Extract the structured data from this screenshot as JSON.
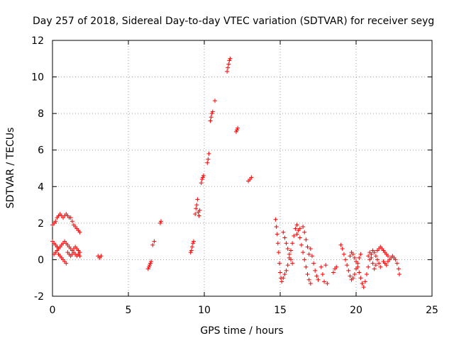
{
  "chart_data": {
    "type": "scatter",
    "title": "Day 257 of 2018, Sidereal Day-to-day VTEC variation (SDTVAR) for receiver seyg",
    "xlabel": "GPS time / hours",
    "ylabel": "SDTVAR / TECUs",
    "xlim": [
      0,
      25
    ],
    "ylim": [
      -2,
      12
    ],
    "xticks": [
      0,
      5,
      10,
      15,
      20,
      25
    ],
    "yticks": [
      -2,
      0,
      2,
      4,
      6,
      8,
      10,
      12
    ],
    "grid": true,
    "marker": "+",
    "color": "#ff0000",
    "series": [
      {
        "name": "SDTVAR",
        "points": [
          [
            0.0,
            1.9
          ],
          [
            0.1,
            2.0
          ],
          [
            0.2,
            2.1
          ],
          [
            0.3,
            2.3
          ],
          [
            0.4,
            2.4
          ],
          [
            0.5,
            2.5
          ],
          [
            0.6,
            2.4
          ],
          [
            0.7,
            2.3
          ],
          [
            0.8,
            2.4
          ],
          [
            0.9,
            2.5
          ],
          [
            1.0,
            2.4
          ],
          [
            1.1,
            2.3
          ],
          [
            1.2,
            2.3
          ],
          [
            1.3,
            2.1
          ],
          [
            1.4,
            1.9
          ],
          [
            1.5,
            1.8
          ],
          [
            1.6,
            1.7
          ],
          [
            1.7,
            1.6
          ],
          [
            1.8,
            1.5
          ],
          [
            0.0,
            1.0
          ],
          [
            0.1,
            0.9
          ],
          [
            0.2,
            0.8
          ],
          [
            0.3,
            0.7
          ],
          [
            0.4,
            0.6
          ],
          [
            0.5,
            0.7
          ],
          [
            0.6,
            0.8
          ],
          [
            0.7,
            0.9
          ],
          [
            0.8,
            1.0
          ],
          [
            0.9,
            0.9
          ],
          [
            1.0,
            0.8
          ],
          [
            1.1,
            0.7
          ],
          [
            1.2,
            0.6
          ],
          [
            1.3,
            0.5
          ],
          [
            1.4,
            0.6
          ],
          [
            1.5,
            0.7
          ],
          [
            1.6,
            0.6
          ],
          [
            1.7,
            0.5
          ],
          [
            1.8,
            0.4
          ],
          [
            0.1,
            0.3
          ],
          [
            0.2,
            0.4
          ],
          [
            0.3,
            0.5
          ],
          [
            0.4,
            0.3
          ],
          [
            0.5,
            0.2
          ],
          [
            0.6,
            0.1
          ],
          [
            0.7,
            0.0
          ],
          [
            0.8,
            -0.1
          ],
          [
            0.9,
            -0.2
          ],
          [
            1.0,
            0.4
          ],
          [
            1.1,
            0.3
          ],
          [
            1.2,
            0.2
          ],
          [
            1.3,
            0.3
          ],
          [
            1.4,
            0.4
          ],
          [
            1.5,
            0.3
          ],
          [
            1.6,
            0.2
          ],
          [
            1.7,
            0.3
          ],
          [
            1.8,
            0.2
          ],
          [
            3.0,
            0.2
          ],
          [
            3.1,
            0.1
          ],
          [
            3.2,
            0.2
          ],
          [
            6.3,
            -0.5
          ],
          [
            6.35,
            -0.4
          ],
          [
            6.4,
            -0.3
          ],
          [
            6.45,
            -0.2
          ],
          [
            6.5,
            -0.1
          ],
          [
            6.6,
            0.8
          ],
          [
            6.7,
            1.0
          ],
          [
            7.1,
            2.0
          ],
          [
            7.15,
            2.1
          ],
          [
            9.1,
            0.4
          ],
          [
            9.15,
            0.5
          ],
          [
            9.2,
            0.7
          ],
          [
            9.25,
            0.9
          ],
          [
            9.3,
            1.0
          ],
          [
            9.4,
            2.5
          ],
          [
            9.45,
            2.8
          ],
          [
            9.5,
            3.0
          ],
          [
            9.55,
            3.3
          ],
          [
            9.6,
            2.6
          ],
          [
            9.65,
            2.4
          ],
          [
            9.7,
            2.7
          ],
          [
            9.8,
            4.2
          ],
          [
            9.85,
            4.4
          ],
          [
            9.9,
            4.5
          ],
          [
            9.95,
            4.6
          ],
          [
            10.2,
            5.3
          ],
          [
            10.25,
            5.5
          ],
          [
            10.3,
            5.8
          ],
          [
            10.4,
            7.6
          ],
          [
            10.45,
            7.8
          ],
          [
            10.5,
            8.0
          ],
          [
            10.55,
            8.1
          ],
          [
            10.7,
            8.7
          ],
          [
            11.5,
            10.3
          ],
          [
            11.55,
            10.5
          ],
          [
            11.6,
            10.7
          ],
          [
            11.65,
            10.9
          ],
          [
            11.7,
            11.0
          ],
          [
            12.1,
            7.0
          ],
          [
            12.15,
            7.1
          ],
          [
            12.2,
            7.2
          ],
          [
            12.9,
            4.3
          ],
          [
            13.0,
            4.4
          ],
          [
            13.1,
            4.5
          ],
          [
            14.7,
            2.2
          ],
          [
            14.75,
            1.8
          ],
          [
            14.8,
            1.4
          ],
          [
            14.85,
            0.9
          ],
          [
            14.9,
            0.4
          ],
          [
            14.95,
            -0.2
          ],
          [
            15.0,
            -0.7
          ],
          [
            15.05,
            -1.0
          ],
          [
            15.1,
            -1.2
          ],
          [
            15.2,
            -1.0
          ],
          [
            15.3,
            -0.8
          ],
          [
            15.4,
            -0.6
          ],
          [
            15.5,
            -0.3
          ],
          [
            15.6,
            0.1
          ],
          [
            15.7,
            0.5
          ],
          [
            15.8,
            0.9
          ],
          [
            15.9,
            1.3
          ],
          [
            16.0,
            1.7
          ],
          [
            16.1,
            1.9
          ],
          [
            16.2,
            1.6
          ],
          [
            16.3,
            1.2
          ],
          [
            16.4,
            0.8
          ],
          [
            16.5,
            0.4
          ],
          [
            16.6,
            0.0
          ],
          [
            16.7,
            -0.4
          ],
          [
            16.8,
            -0.8
          ],
          [
            16.9,
            -1.1
          ],
          [
            17.0,
            -1.3
          ],
          [
            15.2,
            1.5
          ],
          [
            15.3,
            1.2
          ],
          [
            15.4,
            0.9
          ],
          [
            15.5,
            0.6
          ],
          [
            15.6,
            0.3
          ],
          [
            15.7,
            0.0
          ],
          [
            15.8,
            -0.2
          ],
          [
            16.1,
            1.4
          ],
          [
            16.3,
            1.7
          ],
          [
            16.5,
            1.8
          ],
          [
            16.6,
            1.5
          ],
          [
            16.7,
            1.1
          ],
          [
            16.8,
            0.7
          ],
          [
            16.9,
            0.3
          ],
          [
            17.0,
            0.6
          ],
          [
            17.1,
            0.2
          ],
          [
            17.2,
            -0.2
          ],
          [
            17.3,
            -0.6
          ],
          [
            17.4,
            -0.9
          ],
          [
            17.5,
            -1.1
          ],
          [
            17.7,
            -0.4
          ],
          [
            17.8,
            -0.8
          ],
          [
            17.9,
            -1.2
          ],
          [
            18.0,
            -0.3
          ],
          [
            18.1,
            -1.3
          ],
          [
            18.5,
            -0.7
          ],
          [
            18.6,
            -0.5
          ],
          [
            18.7,
            -0.4
          ],
          [
            19.0,
            0.8
          ],
          [
            19.1,
            0.6
          ],
          [
            19.2,
            0.3
          ],
          [
            19.3,
            0.0
          ],
          [
            19.4,
            -0.3
          ],
          [
            19.5,
            -0.6
          ],
          [
            19.6,
            -0.9
          ],
          [
            19.7,
            -1.1
          ],
          [
            19.8,
            -1.0
          ],
          [
            19.9,
            -0.8
          ],
          [
            20.0,
            -0.5
          ],
          [
            20.1,
            -0.2
          ],
          [
            20.2,
            0.1
          ],
          [
            20.3,
            0.3
          ],
          [
            19.6,
            0.2
          ],
          [
            19.7,
            0.4
          ],
          [
            19.8,
            0.3
          ],
          [
            19.9,
            0.1
          ],
          [
            20.0,
            -0.1
          ],
          [
            20.1,
            -0.4
          ],
          [
            20.2,
            -0.7
          ],
          [
            20.3,
            -1.0
          ],
          [
            20.4,
            -1.3
          ],
          [
            20.5,
            -1.5
          ],
          [
            20.6,
            -1.2
          ],
          [
            20.7,
            -0.8
          ],
          [
            20.8,
            -0.4
          ],
          [
            20.9,
            0.0
          ],
          [
            21.0,
            0.3
          ],
          [
            21.1,
            0.5
          ],
          [
            21.2,
            0.4
          ],
          [
            21.3,
            0.2
          ],
          [
            21.4,
            0.0
          ],
          [
            21.5,
            -0.2
          ],
          [
            21.6,
            -0.4
          ],
          [
            20.8,
            0.2
          ],
          [
            20.9,
            0.4
          ],
          [
            21.0,
            0.1
          ],
          [
            21.1,
            -0.2
          ],
          [
            21.2,
            -0.5
          ],
          [
            21.3,
            -0.3
          ],
          [
            21.4,
            0.5
          ],
          [
            21.5,
            0.6
          ],
          [
            21.6,
            0.7
          ],
          [
            21.7,
            0.6
          ],
          [
            21.8,
            0.5
          ],
          [
            21.9,
            0.4
          ],
          [
            22.0,
            0.3
          ],
          [
            22.1,
            0.2
          ],
          [
            21.8,
            -0.1
          ],
          [
            21.9,
            -0.2
          ],
          [
            22.0,
            -0.3
          ],
          [
            22.1,
            -0.1
          ],
          [
            22.2,
            0.0
          ],
          [
            22.3,
            0.1
          ],
          [
            22.4,
            0.2
          ],
          [
            22.5,
            0.1
          ],
          [
            22.6,
            0.0
          ],
          [
            22.7,
            -0.2
          ],
          [
            22.8,
            -0.5
          ],
          [
            22.85,
            -0.8
          ]
        ]
      }
    ]
  }
}
